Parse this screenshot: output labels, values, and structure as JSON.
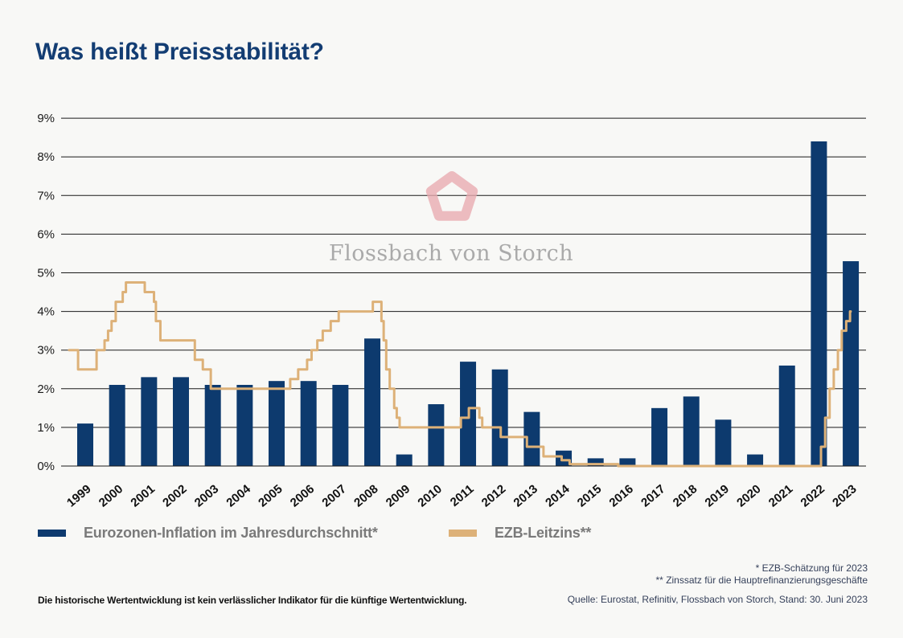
{
  "page": {
    "background": "#f8f8f6"
  },
  "header": {
    "title": "Was heißt Preisstabilität?",
    "title_color": "#133d73"
  },
  "watermark": {
    "brand": "Flossbach von Storch",
    "logo_icon": "pentagon-ring-icon",
    "logo_color": "#e9abb0",
    "text_color": "#a6a6a6"
  },
  "legend": {
    "items": [
      {
        "label": "Eurozonen-Inflation im Jahresdurchschnitt*",
        "color": "#0d3a6e"
      },
      {
        "label": "EZB-Leitzins**",
        "color": "#ddb178"
      }
    ]
  },
  "footnotes": {
    "line1": "* EZB-Schätzung für 2023",
    "line2": "** Zinssatz für die Hauptrefinanzierungsgeschäfte"
  },
  "source": "Quelle: Eurostat, Refinitiv, Flossbach von Storch, Stand: 30. Juni 2023",
  "disclaimer": "Die historische Wertentwicklung ist kein verlässlicher Indikator für die künftige Wertentwicklung.",
  "chart_data": {
    "type": "bar+line",
    "title": "Was heißt Preisstabilität?",
    "categories": [
      1999,
      2000,
      2001,
      2002,
      2003,
      2004,
      2005,
      2006,
      2007,
      2008,
      2009,
      2010,
      2011,
      2012,
      2013,
      2014,
      2015,
      2016,
      2017,
      2018,
      2019,
      2020,
      2021,
      2022,
      2023
    ],
    "series": [
      {
        "name": "Eurozonen-Inflation im Jahresdurchschnitt*",
        "type": "bar",
        "color": "#0d3a6e",
        "values": [
          1.1,
          2.1,
          2.3,
          2.3,
          2.1,
          2.1,
          2.2,
          2.2,
          2.1,
          3.3,
          0.3,
          1.6,
          2.7,
          2.5,
          1.4,
          0.4,
          0.2,
          0.2,
          1.5,
          1.8,
          1.2,
          0.3,
          2.6,
          8.4,
          5.3
        ]
      },
      {
        "name": "EZB-Leitzins**",
        "type": "step-line",
        "color": "#ddb178",
        "points": [
          [
            1999.0,
            3.0
          ],
          [
            1999.28,
            2.5
          ],
          [
            1999.86,
            3.0
          ],
          [
            2000.11,
            3.25
          ],
          [
            2000.22,
            3.5
          ],
          [
            2000.33,
            3.75
          ],
          [
            2000.46,
            4.25
          ],
          [
            2000.68,
            4.5
          ],
          [
            2000.78,
            4.75
          ],
          [
            2001.37,
            4.5
          ],
          [
            2001.66,
            4.25
          ],
          [
            2001.72,
            3.75
          ],
          [
            2001.86,
            3.25
          ],
          [
            2002.94,
            2.75
          ],
          [
            2003.19,
            2.5
          ],
          [
            2003.44,
            2.0
          ],
          [
            2005.93,
            2.25
          ],
          [
            2006.18,
            2.5
          ],
          [
            2006.46,
            2.75
          ],
          [
            2006.6,
            3.0
          ],
          [
            2006.78,
            3.25
          ],
          [
            2006.95,
            3.5
          ],
          [
            2007.2,
            3.75
          ],
          [
            2007.45,
            4.0
          ],
          [
            2008.52,
            4.25
          ],
          [
            2008.79,
            3.75
          ],
          [
            2008.86,
            3.25
          ],
          [
            2008.94,
            2.5
          ],
          [
            2009.05,
            2.0
          ],
          [
            2009.19,
            1.5
          ],
          [
            2009.27,
            1.25
          ],
          [
            2009.36,
            1.0
          ],
          [
            2011.28,
            1.25
          ],
          [
            2011.53,
            1.5
          ],
          [
            2011.86,
            1.25
          ],
          [
            2011.95,
            1.0
          ],
          [
            2012.53,
            0.75
          ],
          [
            2013.35,
            0.5
          ],
          [
            2013.87,
            0.25
          ],
          [
            2014.44,
            0.15
          ],
          [
            2014.69,
            0.05
          ],
          [
            2016.21,
            0.0
          ],
          [
            2022.57,
            0.5
          ],
          [
            2022.7,
            1.25
          ],
          [
            2022.84,
            2.0
          ],
          [
            2022.97,
            2.5
          ],
          [
            2023.1,
            3.0
          ],
          [
            2023.22,
            3.5
          ],
          [
            2023.36,
            3.75
          ],
          [
            2023.48,
            4.0
          ],
          [
            2023.5,
            4.0
          ]
        ]
      }
    ],
    "ylim": [
      0,
      9
    ],
    "yticks": [
      "0%",
      "1%",
      "2%",
      "3%",
      "4%",
      "5%",
      "6%",
      "7%",
      "8%",
      "9%"
    ],
    "xlabel": "",
    "ylabel": "",
    "grid": "horizontal",
    "legend_position": "bottom",
    "grid_color": "#1a1a1a"
  }
}
